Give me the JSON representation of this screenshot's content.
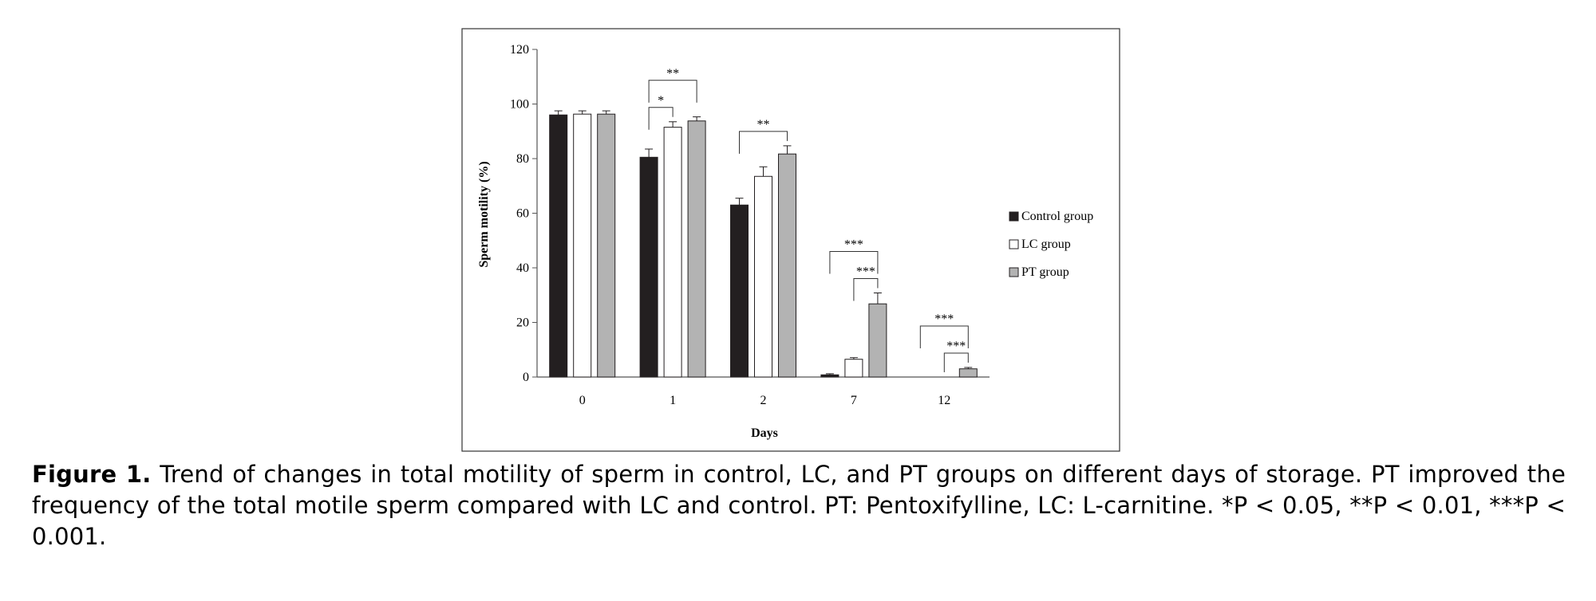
{
  "chart_data": {
    "type": "bar",
    "xlabel": "Days",
    "ylabel": "Sperm motility (%)",
    "ylim": [
      0,
      120
    ],
    "yticks": [
      0,
      20,
      40,
      60,
      80,
      100,
      120
    ],
    "categories": [
      "0",
      "1",
      "2",
      "7",
      "12"
    ],
    "series": [
      {
        "name": "Control group",
        "color": "#231f20",
        "values": [
          96,
          80.5,
          63,
          0.8,
          0
        ],
        "errors": [
          1.5,
          3,
          2.5,
          0.4,
          0
        ]
      },
      {
        "name": "LC group",
        "color": "#ffffff",
        "values": [
          96.3,
          91.5,
          73.5,
          6.5,
          0
        ],
        "errors": [
          1.2,
          2,
          3.5,
          0.6,
          0
        ]
      },
      {
        "name": "PT group",
        "color": "#b3b3b3",
        "values": [
          96.3,
          93.8,
          81.7,
          26.8,
          3
        ],
        "errors": [
          1.2,
          1.5,
          3,
          4,
          0.5
        ]
      }
    ],
    "significance": [
      {
        "day": "1",
        "from": "Control group",
        "to": "LC group",
        "label": "*"
      },
      {
        "day": "1",
        "from": "Control group",
        "to": "PT group",
        "label": "**"
      },
      {
        "day": "2",
        "from": "Control group",
        "to": "PT group",
        "label": "**"
      },
      {
        "day": "7",
        "from": "LC group",
        "to": "PT group",
        "label": "***"
      },
      {
        "day": "7",
        "from": "Control group",
        "to": "PT group",
        "label": "***"
      },
      {
        "day": "12",
        "from": "LC group",
        "to": "PT group",
        "label": "***"
      },
      {
        "day": "12",
        "from": "Control group",
        "to": "PT group",
        "label": "***"
      }
    ],
    "legend_position": "right",
    "grid": false
  },
  "caption": {
    "label": "Figure 1.",
    "text": " Trend of changes in total motility of sperm in control, LC, and PT groups on different days of storage. PT improved the frequency of the total motile sperm compared with LC and control. PT: Pentoxifylline, LC: L-carnitine. *P < 0.05, **P < 0.01, ***P < 0.001."
  }
}
